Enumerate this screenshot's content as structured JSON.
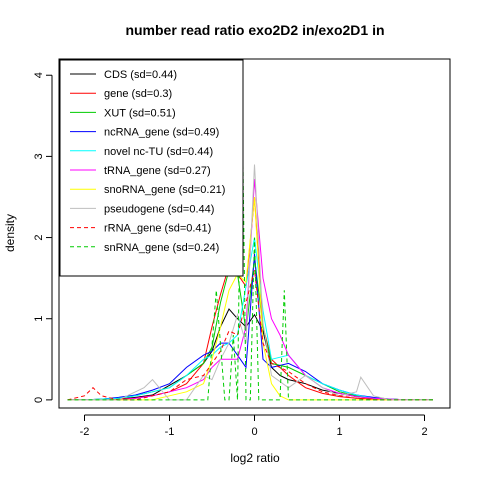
{
  "chart_data": {
    "type": "line",
    "title": "number read ratio exo2D2 in/exo2D1 in",
    "xlabel": "log2 ratio",
    "ylabel": "density",
    "xlim": [
      -2.3,
      2.3
    ],
    "ylim": [
      -0.1,
      4.2
    ],
    "xticks": [
      -2,
      -1,
      0,
      1,
      2
    ],
    "yticks": [
      0,
      1,
      2,
      3,
      4
    ],
    "grid": false,
    "legend_position": "top-left",
    "series": [
      {
        "name": "CDS (sd=0.44)",
        "color": "#000000",
        "dash": "solid",
        "x": [
          -2.2,
          -2.0,
          -1.8,
          -1.6,
          -1.4,
          -1.2,
          -1.0,
          -0.8,
          -0.6,
          -0.5,
          -0.4,
          -0.3,
          -0.2,
          -0.1,
          0.0,
          0.1,
          0.2,
          0.3,
          0.4,
          0.6,
          0.8,
          1.0,
          1.2,
          1.4,
          1.6,
          1.8,
          2.0,
          2.1
        ],
        "y": [
          0,
          0,
          0,
          0.01,
          0.03,
          0.06,
          0.18,
          0.3,
          0.45,
          0.6,
          0.9,
          1.12,
          1.0,
          0.9,
          1.05,
          0.85,
          0.4,
          0.3,
          0.25,
          0.2,
          0.12,
          0.08,
          0.04,
          0.02,
          0.01,
          0,
          0,
          0
        ]
      },
      {
        "name": "gene (sd=0.3)",
        "color": "#ff0000",
        "dash": "solid",
        "x": [
          -2.2,
          -2.0,
          -1.8,
          -1.6,
          -1.4,
          -1.2,
          -1.0,
          -0.8,
          -0.6,
          -0.5,
          -0.4,
          -0.3,
          -0.2,
          -0.1,
          0.0,
          0.1,
          0.2,
          0.4,
          0.6,
          0.8,
          1.0,
          1.2,
          1.4,
          1.6,
          1.8,
          2.0,
          2.1
        ],
        "y": [
          0,
          0,
          0,
          0.01,
          0.02,
          0.05,
          0.1,
          0.2,
          0.45,
          0.9,
          1.3,
          1.65,
          1.55,
          1.4,
          2.5,
          0.9,
          0.5,
          0.3,
          0.15,
          0.08,
          0.04,
          0.02,
          0.01,
          0,
          0,
          0,
          0
        ]
      },
      {
        "name": "XUT (sd=0.51)",
        "color": "#00cc00",
        "dash": "solid",
        "x": [
          -2.2,
          -2.0,
          -1.8,
          -1.6,
          -1.4,
          -1.2,
          -1.0,
          -0.8,
          -0.6,
          -0.5,
          -0.4,
          -0.3,
          -0.2,
          -0.1,
          0.0,
          0.1,
          0.2,
          0.4,
          0.6,
          0.8,
          1.0,
          1.2,
          1.4,
          1.6,
          1.8,
          2.0,
          2.1
        ],
        "y": [
          0,
          0,
          0.01,
          0.02,
          0.05,
          0.1,
          0.15,
          0.3,
          0.45,
          0.65,
          1.2,
          1.6,
          1.55,
          0.85,
          1.75,
          0.9,
          0.45,
          0.4,
          0.3,
          0.2,
          0.1,
          0.05,
          0.02,
          0.01,
          0,
          0,
          0
        ]
      },
      {
        "name": "ncRNA_gene (sd=0.49)",
        "color": "#0000ff",
        "dash": "solid",
        "x": [
          -2.2,
          -2.0,
          -1.8,
          -1.6,
          -1.4,
          -1.2,
          -1.0,
          -0.8,
          -0.6,
          -0.5,
          -0.4,
          -0.3,
          -0.2,
          -0.1,
          0.0,
          0.1,
          0.2,
          0.4,
          0.6,
          0.8,
          1.0,
          1.2,
          1.4,
          1.6,
          1.8,
          2.0,
          2.1
        ],
        "y": [
          0,
          0,
          0.01,
          0.03,
          0.06,
          0.12,
          0.2,
          0.4,
          0.55,
          0.6,
          0.7,
          0.7,
          0.55,
          0.4,
          1.8,
          0.5,
          0.4,
          0.45,
          0.35,
          0.2,
          0.12,
          0.06,
          0.03,
          0.01,
          0,
          0,
          0
        ]
      },
      {
        "name": "novel nc-TU (sd=0.44)",
        "color": "#00ffff",
        "dash": "solid",
        "x": [
          -2.2,
          -2.0,
          -1.8,
          -1.6,
          -1.4,
          -1.2,
          -1.0,
          -0.8,
          -0.6,
          -0.5,
          -0.4,
          -0.3,
          -0.2,
          -0.1,
          0.0,
          0.1,
          0.2,
          0.4,
          0.6,
          0.8,
          1.0,
          1.2,
          1.4,
          1.6,
          1.8,
          2.0,
          2.1
        ],
        "y": [
          0,
          0,
          0.01,
          0.02,
          0.05,
          0.1,
          0.15,
          0.3,
          0.5,
          0.55,
          0.65,
          0.7,
          0.8,
          1.4,
          2.0,
          1.1,
          0.5,
          0.55,
          0.3,
          0.2,
          0.12,
          0.06,
          0.02,
          0.01,
          0,
          0,
          0
        ]
      },
      {
        "name": "tRNA_gene (sd=0.27)",
        "color": "#ff00ff",
        "dash": "solid",
        "x": [
          -2.2,
          -2.0,
          -1.8,
          -1.6,
          -1.4,
          -1.2,
          -1.0,
          -0.8,
          -0.6,
          -0.5,
          -0.4,
          -0.3,
          -0.2,
          -0.1,
          0.0,
          0.1,
          0.2,
          0.3,
          0.4,
          0.6,
          0.8,
          1.0,
          1.2,
          1.4,
          1.6,
          1.8,
          2.0,
          2.1
        ],
        "y": [
          0,
          0,
          0,
          0,
          0.02,
          0.05,
          0.1,
          0.15,
          0.25,
          0.4,
          0.5,
          0.5,
          0.5,
          0.9,
          2.72,
          1.5,
          1.0,
          0.8,
          0.55,
          0.3,
          0.15,
          0.08,
          0.04,
          0.02,
          0.01,
          0,
          0,
          0
        ]
      },
      {
        "name": "snoRNA_gene (sd=0.21)",
        "color": "#ffff00",
        "dash": "solid",
        "x": [
          -2.2,
          -2.0,
          -1.8,
          -1.6,
          -1.4,
          -1.2,
          -1.0,
          -0.8,
          -0.6,
          -0.5,
          -0.4,
          -0.3,
          -0.2,
          -0.1,
          0.0,
          0.1,
          0.2,
          0.3,
          0.4,
          0.6,
          0.8,
          1.0,
          1.2,
          1.4,
          1.6,
          1.8,
          2.0,
          2.1
        ],
        "y": [
          0,
          0,
          0,
          0,
          0,
          0,
          0.05,
          0.1,
          0.2,
          0.5,
          0.9,
          1.35,
          1.55,
          1.45,
          2.5,
          0.7,
          0.2,
          0.05,
          0,
          0,
          0,
          0,
          0,
          0,
          0,
          0,
          0,
          0
        ]
      },
      {
        "name": "pseudogene (sd=0.44)",
        "color": "#bebebe",
        "dash": "solid",
        "x": [
          -2.2,
          -2.0,
          -1.8,
          -1.6,
          -1.4,
          -1.3,
          -1.2,
          -1.0,
          -0.8,
          -0.6,
          -0.5,
          -0.4,
          -0.3,
          -0.2,
          -0.1,
          0.0,
          0.1,
          0.2,
          0.4,
          0.6,
          0.8,
          1.0,
          1.2,
          1.25,
          1.4,
          1.6,
          1.8,
          2.0,
          2.1
        ],
        "y": [
          0,
          0,
          0,
          0,
          0.1,
          0.15,
          0.25,
          0,
          0,
          0.3,
          0.25,
          0.5,
          0.7,
          1.05,
          0.7,
          2.9,
          0.95,
          0.3,
          0.15,
          0.3,
          0.15,
          0.05,
          0.1,
          0.28,
          0.05,
          0,
          0,
          0,
          0
        ]
      },
      {
        "name": "rRNA_gene (sd=0.41)",
        "color": "#ff0000",
        "dash": "dashed",
        "x": [
          -2.2,
          -2.0,
          -1.9,
          -1.8,
          -1.6,
          -1.4,
          -1.2,
          -1.0,
          -0.8,
          -0.6,
          -0.5,
          -0.4,
          -0.3,
          -0.2,
          -0.1,
          0.0,
          0.1,
          0.2,
          0.4,
          0.6,
          0.8,
          1.0,
          1.2,
          1.4,
          1.6,
          1.8,
          2.0,
          2.1
        ],
        "y": [
          0,
          0.05,
          0.15,
          0.05,
          0,
          0,
          0.05,
          0.1,
          0.25,
          0.3,
          0.45,
          0.6,
          0.85,
          0.8,
          1.2,
          1.6,
          0.7,
          0.45,
          0.35,
          0.2,
          0.1,
          0.05,
          0.02,
          0,
          0,
          0,
          0,
          0
        ]
      },
      {
        "name": "snRNA_gene (sd=0.24)",
        "color": "#00cc00",
        "dash": "dashed",
        "x": [
          -2.2,
          -1.0,
          -0.55,
          -0.45,
          -0.35,
          -0.3,
          -0.25,
          -0.2,
          -0.15,
          -0.1,
          -0.05,
          0.0,
          0.05,
          0.1,
          0.2,
          0.3,
          0.35,
          0.4,
          0.45,
          2.1
        ],
        "y": [
          0,
          0,
          0,
          1.35,
          0,
          0,
          0.8,
          0,
          4.05,
          0,
          0,
          2.0,
          0,
          0,
          0,
          0,
          1.35,
          0,
          0,
          0
        ]
      }
    ]
  }
}
